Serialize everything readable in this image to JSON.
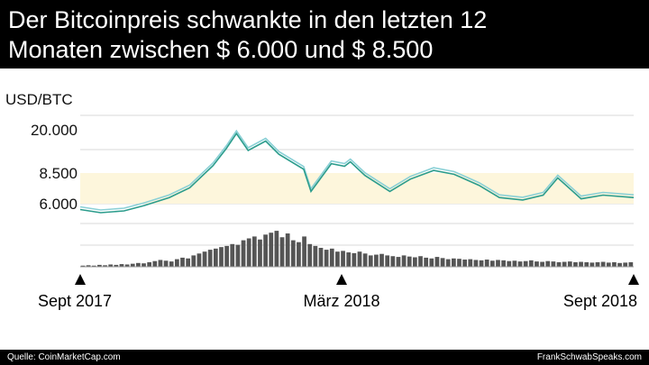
{
  "title": {
    "line1": "Der Bitcoinpreis schwankte in den letzten 12",
    "line2": "Monaten zwischen $ 6.000 und $ 8.500"
  },
  "footer": {
    "source": "Quelle: CoinMarketCap.com",
    "credit": "FrankSchwabSpeaks.com"
  },
  "chart_data": {
    "type": "line",
    "ylabel": "USD/BTC",
    "yticks": [
      {
        "value": 20000,
        "label": "20.000"
      },
      {
        "value": 8500,
        "label": "8.500"
      },
      {
        "value": 6000,
        "label": "6.000"
      }
    ],
    "band": {
      "from": 6000,
      "to": 8500,
      "color": "#fdf6dc"
    },
    "x_labels": [
      {
        "date": "2017-09",
        "label": "Sept 2017"
      },
      {
        "date": "2018-03",
        "label": "März 2018"
      },
      {
        "date": "2018-09",
        "label": "Sept 2018"
      }
    ],
    "colors": {
      "series_dark": "#2b9c8c",
      "series_light": "#8ad0d6",
      "band": "#fdf6dc",
      "volume": "#555555",
      "grid": "#d8d8d8"
    },
    "series": [
      {
        "x": [
          "2017-09-01",
          "2017-09-15",
          "2017-10-01",
          "2017-10-15",
          "2017-11-01",
          "2017-11-15",
          "2017-12-01",
          "2017-12-10",
          "2017-12-17",
          "2017-12-25",
          "2018-01-06",
          "2018-01-15",
          "2018-02-01",
          "2018-02-06",
          "2018-02-20",
          "2018-03-01",
          "2018-03-05",
          "2018-03-15",
          "2018-04-01",
          "2018-04-15",
          "2018-05-01",
          "2018-05-15",
          "2018-06-01",
          "2018-06-15",
          "2018-07-01",
          "2018-07-15",
          "2018-07-25",
          "2018-08-10",
          "2018-08-25",
          "2018-09-15"
        ],
        "values": [
          4700,
          4000,
          4400,
          5600,
          6500,
          7300,
          10500,
          15000,
          19000,
          14500,
          17000,
          13500,
          9500,
          7000,
          11000,
          10300,
          11500,
          8300,
          7000,
          8000,
          9200,
          8400,
          7500,
          6500,
          6300,
          6700,
          8100,
          6400,
          6700,
          6500
        ]
      }
    ],
    "volume": {
      "unit": "relative",
      "values": [
        0.03,
        0.04,
        0.03,
        0.05,
        0.04,
        0.06,
        0.05,
        0.07,
        0.06,
        0.08,
        0.1,
        0.09,
        0.12,
        0.15,
        0.18,
        0.16,
        0.14,
        0.2,
        0.24,
        0.22,
        0.3,
        0.35,
        0.4,
        0.45,
        0.48,
        0.52,
        0.55,
        0.6,
        0.58,
        0.7,
        0.75,
        0.8,
        0.72,
        0.85,
        0.9,
        0.95,
        0.78,
        0.88,
        0.7,
        0.65,
        0.8,
        0.6,
        0.55,
        0.5,
        0.45,
        0.48,
        0.4,
        0.42,
        0.38,
        0.36,
        0.4,
        0.35,
        0.3,
        0.32,
        0.34,
        0.3,
        0.28,
        0.26,
        0.3,
        0.27,
        0.25,
        0.28,
        0.24,
        0.22,
        0.26,
        0.23,
        0.2,
        0.22,
        0.21,
        0.19,
        0.2,
        0.18,
        0.17,
        0.19,
        0.16,
        0.18,
        0.17,
        0.15,
        0.16,
        0.14,
        0.15,
        0.17,
        0.14,
        0.13,
        0.15,
        0.14,
        0.12,
        0.13,
        0.14,
        0.12,
        0.13,
        0.12,
        0.11,
        0.12,
        0.13,
        0.11,
        0.12,
        0.1,
        0.11,
        0.12
      ]
    }
  }
}
